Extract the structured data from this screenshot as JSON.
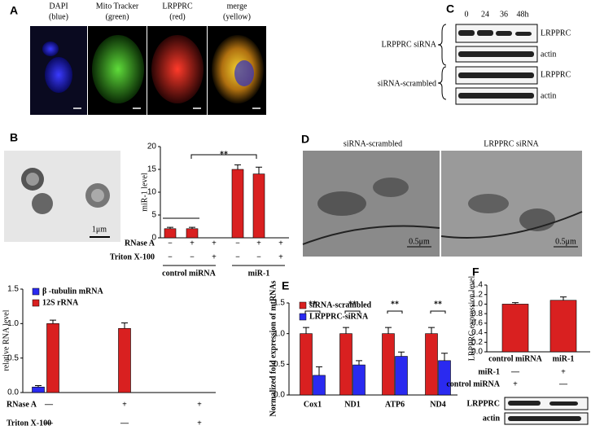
{
  "letters": [
    "A",
    "B",
    "C",
    "D",
    "E",
    "F"
  ],
  "panel_a": {
    "captions": [
      [
        "DAPI",
        "(blue)"
      ],
      [
        "Mito Tracker",
        "(green)"
      ],
      [
        "LRPPRC",
        "(red)"
      ],
      [
        "merge",
        "(yellow)"
      ]
    ]
  },
  "panel_b": {
    "scale": "1μm"
  },
  "panel_c": {
    "times": [
      "0",
      "24",
      "36",
      "48h"
    ],
    "groups": [
      "LRPPRC siRNA",
      "siRNA-scrambled"
    ],
    "bands": [
      "LRPPRC",
      "actin",
      "LRPPRC",
      "actin"
    ]
  },
  "panel_d": {
    "titles": [
      "siRNA-scrambled",
      "LRPPRC siRNA"
    ],
    "scales": [
      "0.5μm",
      "0.5μm"
    ]
  },
  "panel_f": {
    "bands": [
      "LRPPRC",
      "actin"
    ]
  },
  "chart_data": [
    {
      "type": "bar",
      "y_label": "miR-1 level",
      "values": [
        2,
        2,
        0,
        15,
        14,
        0
      ],
      "errors": [
        0.3,
        0.3,
        0,
        1,
        1.5,
        0
      ],
      "color": "#d92020",
      "ylim": [
        0,
        20
      ],
      "yticks": [
        0,
        5,
        10,
        15,
        20
      ],
      "annotations": [
        "**"
      ],
      "conditions": [
        {
          "name": "RNase A",
          "marks": [
            "−",
            "+",
            "+",
            "−",
            "+",
            "+"
          ]
        },
        {
          "name": "Triton X-100",
          "marks": [
            "−",
            "−",
            "+",
            "−",
            "−",
            "+"
          ]
        }
      ],
      "group_labels": [
        "control miRNA",
        "miR-1"
      ]
    },
    {
      "type": "bar",
      "y_label": "relative RNA level",
      "series": [
        {
          "name": "β -tubulin mRNA",
          "color": "#2a2af0",
          "values": [
            0.08,
            0,
            0
          ],
          "errors": [
            0.02,
            0,
            0
          ]
        },
        {
          "name": "12S rRNA",
          "color": "#d92020",
          "values": [
            1,
            0.93,
            0
          ],
          "errors": [
            0.05,
            0.08,
            0
          ]
        }
      ],
      "ylim": [
        0,
        1.5
      ],
      "yticks": [
        {
          "value": 0,
          "label": "0.0"
        },
        0.5,
        {
          "value": 1,
          "label": "1.0"
        },
        1.5
      ],
      "conditions": [
        {
          "name": "RNase A",
          "marks": [
            "—",
            "+",
            "+"
          ]
        },
        {
          "name": "Triton X-100",
          "marks": [
            "—",
            "—",
            "+"
          ]
        }
      ]
    },
    {
      "type": "bar",
      "y_label": "Normalized fold expression of mtRNAs",
      "categories": [
        "Cox1",
        "ND1",
        "ATP6",
        "ND4"
      ],
      "series": [
        {
          "name": "siRNA-scrambled",
          "color": "#d92020",
          "values": [
            1,
            1,
            1,
            1
          ],
          "errors": [
            0.1,
            0.1,
            0.1,
            0.1
          ]
        },
        {
          "name": "LRPPRC-siRNA",
          "color": "#2a2af0",
          "values": [
            0.32,
            0.49,
            0.63,
            0.56
          ],
          "errors": [
            0.14,
            0.07,
            0.07,
            0.12
          ]
        }
      ],
      "ylim": [
        0,
        1.5
      ],
      "yticks": [
        {
          "value": 0,
          "label": "0.0"
        },
        0.5,
        {
          "value": 1,
          "label": "1.0"
        },
        1.5
      ],
      "annotations": [
        "**",
        "**",
        "**",
        "**"
      ]
    },
    {
      "type": "bar",
      "y_label": "LRPPRC expression level",
      "categories": [
        "control miRNA",
        "miR-1"
      ],
      "values": [
        1,
        1.08
      ],
      "errors": [
        0.03,
        0.07
      ],
      "color": "#d92020",
      "ylim": [
        0,
        1.4
      ],
      "yticks": [
        {
          "value": 0,
          "label": "0.0"
        },
        0.2,
        0.4,
        0.6,
        0.8,
        {
          "value": 1,
          "label": "1.0"
        },
        1.2,
        1.4
      ],
      "conditions": [
        {
          "name": "miR-1",
          "marks": [
            "—",
            "+"
          ]
        },
        {
          "name": "control miRNA",
          "marks": [
            "+",
            "—"
          ]
        }
      ]
    }
  ]
}
